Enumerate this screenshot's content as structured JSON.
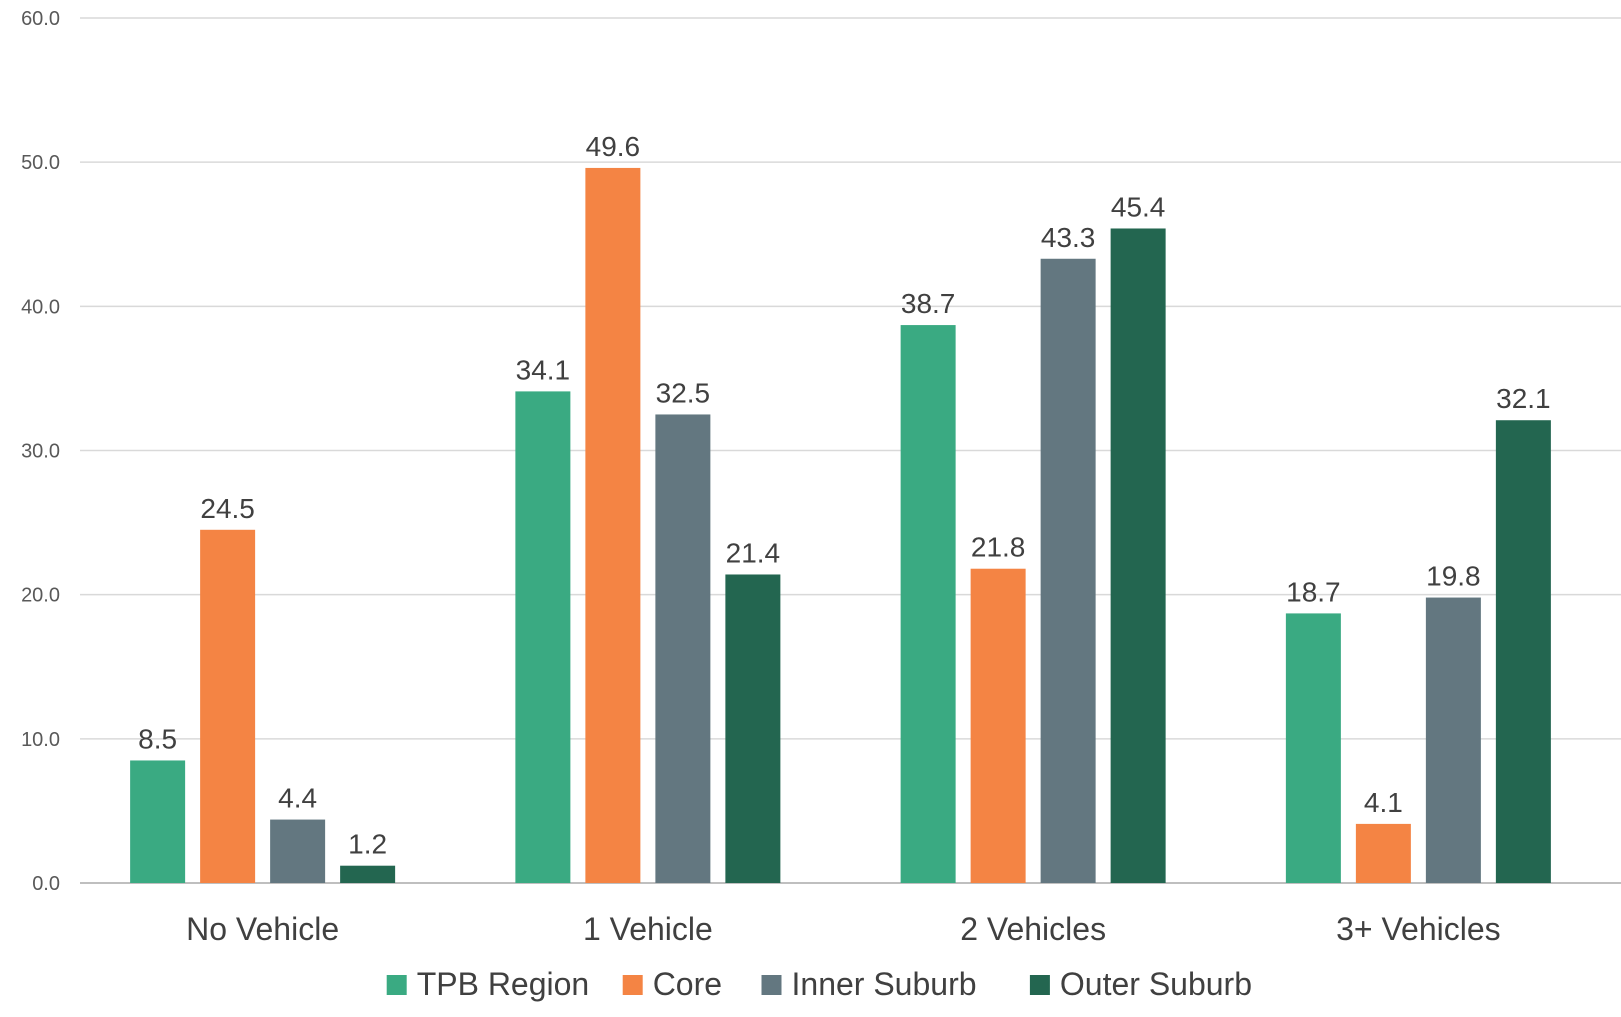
{
  "chart_data": {
    "type": "bar",
    "title": "",
    "xlabel": "",
    "ylabel": "",
    "categories": [
      "No Vehicle",
      "1 Vehicle",
      "2 Vehicles",
      "3+ Vehicles"
    ],
    "series": [
      {
        "name": "TPB Region",
        "color": "#3aaa82",
        "values": [
          8.5,
          34.1,
          38.7,
          18.7
        ]
      },
      {
        "name": "Core",
        "color": "#f48444",
        "values": [
          24.5,
          49.6,
          21.8,
          4.1
        ]
      },
      {
        "name": "Inner Suburb",
        "color": "#637780",
        "values": [
          4.4,
          32.5,
          43.3,
          19.8
        ]
      },
      {
        "name": "Outer Suburb",
        "color": "#236650",
        "values": [
          1.2,
          21.4,
          45.4,
          32.1
        ]
      }
    ],
    "ylim": [
      0,
      60
    ],
    "yticks": [
      "0.0",
      "10.0",
      "20.0",
      "30.0",
      "40.0",
      "50.0",
      "60.0"
    ],
    "data_labels": true,
    "grid": true,
    "legend_position": "bottom"
  }
}
